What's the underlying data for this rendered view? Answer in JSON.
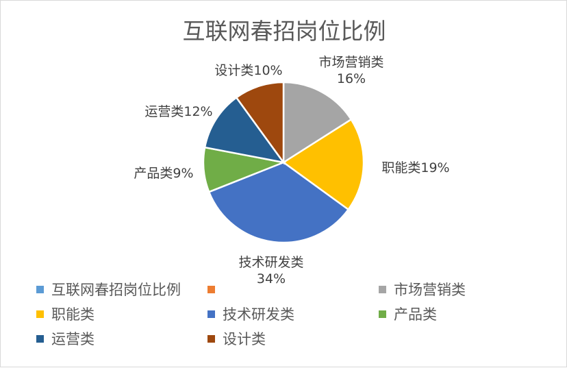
{
  "chart_data": {
    "type": "pie",
    "title": "互联网春招岗位比例",
    "slices": [
      {
        "name": "市场营销类",
        "value": 16,
        "label_top": "市场营销类",
        "label_bottom": "16%",
        "color": "#a5a5a5"
      },
      {
        "name": "职能类",
        "value": 19,
        "label_top": "职能类19%",
        "label_bottom": "",
        "color": "#ffc000"
      },
      {
        "name": "技术研发类",
        "value": 34,
        "label_top": "技术研发类",
        "label_bottom": "34%",
        "color": "#4472c4"
      },
      {
        "name": "产品类",
        "value": 9,
        "label_top": "产品类9%",
        "label_bottom": "",
        "color": "#70ad47"
      },
      {
        "name": "运营类",
        "value": 12,
        "label_top": "运营类12%",
        "label_bottom": "",
        "color": "#255e91"
      },
      {
        "name": "设计类",
        "value": 10,
        "label_top": "设计类10%",
        "label_bottom": "",
        "color": "#9e480e"
      }
    ],
    "legend": [
      {
        "label": "互联网春招岗位比例",
        "color": "#5b9bd5"
      },
      {
        "label": "",
        "color": "#ed7d31"
      },
      {
        "label": "市场营销类",
        "color": "#a5a5a5"
      },
      {
        "label": "职能类",
        "color": "#ffc000"
      },
      {
        "label": "技术研发类",
        "color": "#4472c4"
      },
      {
        "label": "产品类",
        "color": "#70ad47"
      },
      {
        "label": "运营类",
        "color": "#255e91"
      },
      {
        "label": "设计类",
        "color": "#9e480e"
      }
    ],
    "legend_position": "bottom"
  }
}
